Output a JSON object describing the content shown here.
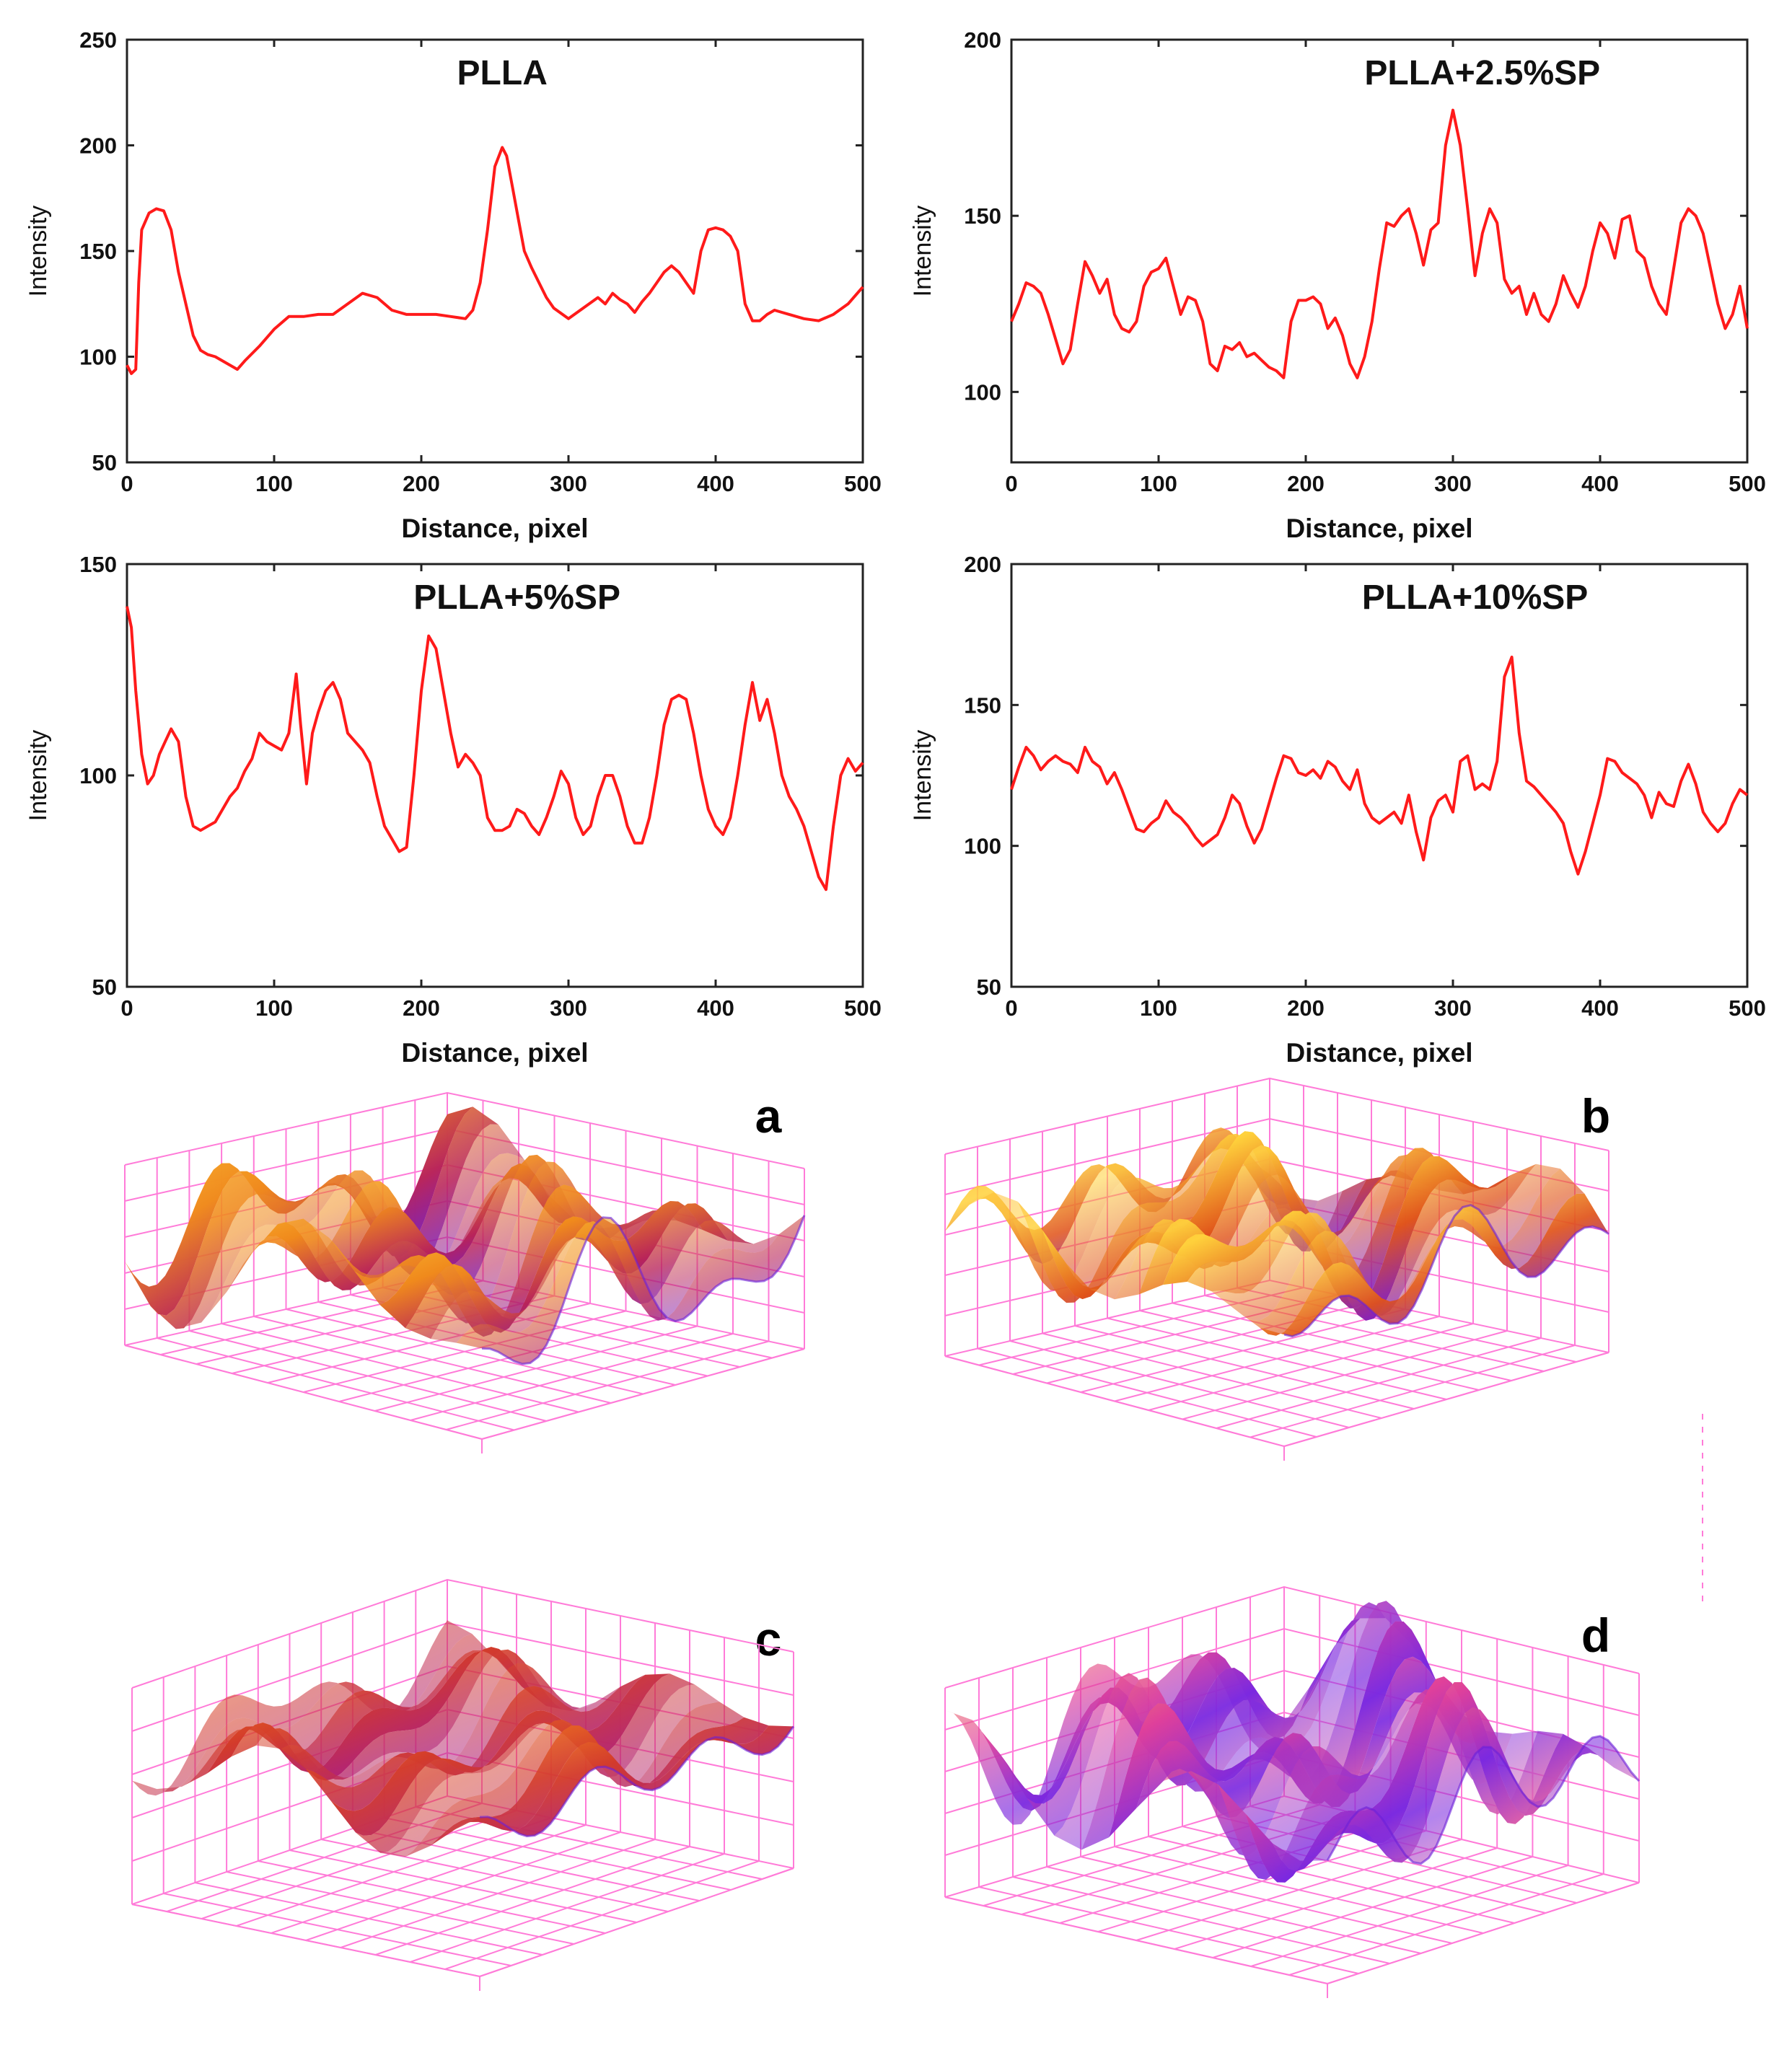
{
  "colors": {
    "line": "#ff1a1a",
    "axis": "#222222",
    "grid3d": "#ff7bd8"
  },
  "panel_letters": [
    "a",
    "b",
    "c",
    "d"
  ],
  "chart_data": [
    {
      "type": "line",
      "title": "PLLA",
      "xlabel": "Distance, pixel",
      "ylabel": "Intensity",
      "xlim": [
        0,
        500
      ],
      "ylim": [
        50,
        250
      ],
      "xticks": [
        0,
        100,
        200,
        300,
        400,
        500
      ],
      "yticks": [
        50,
        100,
        150,
        200,
        250
      ],
      "series": [
        {
          "name": "PLLA",
          "x": [
            0,
            3,
            6,
            8,
            10,
            15,
            20,
            25,
            30,
            35,
            40,
            45,
            50,
            55,
            60,
            65,
            70,
            75,
            80,
            90,
            100,
            110,
            120,
            130,
            140,
            150,
            160,
            170,
            180,
            190,
            200,
            210,
            220,
            230,
            235,
            240,
            245,
            250,
            255,
            258,
            262,
            266,
            270,
            275,
            280,
            285,
            290,
            300,
            310,
            320,
            325,
            330,
            335,
            340,
            345,
            350,
            355,
            360,
            365,
            370,
            375,
            380,
            385,
            390,
            395,
            400,
            405,
            410,
            415,
            420,
            425,
            430,
            435,
            440,
            445,
            450,
            460,
            470,
            480,
            490,
            500
          ],
          "y": [
            96,
            92,
            94,
            135,
            160,
            168,
            170,
            169,
            160,
            140,
            125,
            110,
            103,
            101,
            100,
            98,
            96,
            94,
            98,
            105,
            113,
            119,
            119,
            120,
            120,
            125,
            130,
            128,
            122,
            120,
            120,
            120,
            119,
            118,
            122,
            135,
            160,
            190,
            199,
            195,
            180,
            165,
            150,
            142,
            135,
            128,
            123,
            118,
            123,
            128,
            125,
            130,
            127,
            125,
            121,
            126,
            130,
            135,
            140,
            143,
            140,
            135,
            130,
            150,
            160,
            161,
            160,
            157,
            150,
            125,
            117,
            117,
            120,
            122,
            121,
            120,
            118,
            117,
            120,
            125,
            133
          ]
        }
      ]
    },
    {
      "type": "line",
      "title": "PLLA+2.5%SP",
      "xlabel": "Distance, pixel",
      "ylabel": "Intensity",
      "xlim": [
        0,
        500
      ],
      "ylim": [
        80,
        200
      ],
      "xticks": [
        0,
        100,
        200,
        300,
        400,
        500
      ],
      "yticks": [
        100,
        150,
        200
      ],
      "series": [
        {
          "name": "PLLA+2.5%SP",
          "x": [
            0,
            5,
            10,
            15,
            20,
            25,
            30,
            35,
            40,
            45,
            50,
            55,
            60,
            65,
            70,
            75,
            80,
            85,
            90,
            95,
            100,
            105,
            110,
            115,
            120,
            125,
            130,
            135,
            140,
            145,
            150,
            155,
            160,
            165,
            170,
            175,
            180,
            185,
            190,
            195,
            200,
            205,
            210,
            215,
            220,
            225,
            230,
            235,
            240,
            245,
            250,
            255,
            260,
            265,
            270,
            275,
            280,
            285,
            290,
            295,
            300,
            305,
            310,
            315,
            320,
            325,
            330,
            335,
            340,
            345,
            350,
            355,
            360,
            365,
            370,
            375,
            380,
            385,
            390,
            395,
            400,
            405,
            410,
            415,
            420,
            425,
            430,
            435,
            440,
            445,
            450,
            455,
            460,
            465,
            470,
            475,
            480,
            485,
            490,
            495,
            500
          ],
          "y": [
            120,
            125,
            131,
            130,
            128,
            122,
            115,
            108,
            112,
            125,
            137,
            133,
            128,
            132,
            122,
            118,
            117,
            120,
            130,
            134,
            135,
            138,
            130,
            122,
            127,
            126,
            120,
            108,
            106,
            113,
            112,
            114,
            110,
            111,
            109,
            107,
            106,
            104,
            120,
            126,
            126,
            127,
            125,
            118,
            121,
            116,
            108,
            104,
            110,
            120,
            135,
            148,
            147,
            150,
            152,
            145,
            136,
            146,
            148,
            170,
            180,
            170,
            152,
            133,
            145,
            152,
            148,
            132,
            128,
            130,
            122,
            128,
            122,
            120,
            125,
            133,
            128,
            124,
            130,
            140,
            148,
            145,
            138,
            149,
            150,
            140,
            138,
            130,
            125,
            122,
            135,
            148,
            152,
            150,
            145,
            135,
            125,
            118,
            122,
            130,
            118
          ]
        }
      ]
    },
    {
      "type": "line",
      "title": "PLLA+5%SP",
      "xlabel": "Distance, pixel",
      "ylabel": "Intensity",
      "xlim": [
        0,
        500
      ],
      "ylim": [
        50,
        150
      ],
      "xticks": [
        0,
        100,
        200,
        300,
        400,
        500
      ],
      "yticks": [
        50,
        100,
        150
      ],
      "series": [
        {
          "name": "PLLA+5%SP",
          "x": [
            0,
            3,
            6,
            10,
            14,
            18,
            22,
            26,
            30,
            35,
            40,
            45,
            50,
            55,
            60,
            65,
            70,
            75,
            80,
            85,
            90,
            95,
            100,
            105,
            110,
            115,
            118,
            122,
            126,
            130,
            135,
            140,
            145,
            150,
            155,
            160,
            165,
            170,
            175,
            180,
            185,
            190,
            195,
            200,
            205,
            210,
            215,
            220,
            225,
            230,
            235,
            240,
            245,
            250,
            255,
            260,
            265,
            270,
            275,
            280,
            285,
            290,
            295,
            300,
            305,
            310,
            315,
            320,
            325,
            330,
            335,
            340,
            345,
            350,
            355,
            360,
            365,
            370,
            375,
            380,
            385,
            390,
            395,
            400,
            405,
            410,
            415,
            420,
            425,
            430,
            435,
            440,
            445,
            450,
            455,
            460,
            465,
            470,
            475,
            480,
            485,
            490,
            495,
            500
          ],
          "y": [
            140,
            135,
            120,
            105,
            98,
            100,
            105,
            108,
            111,
            108,
            95,
            88,
            87,
            88,
            89,
            92,
            95,
            97,
            101,
            104,
            110,
            108,
            107,
            106,
            110,
            124,
            112,
            98,
            110,
            115,
            120,
            122,
            118,
            110,
            108,
            106,
            103,
            95,
            88,
            85,
            82,
            83,
            100,
            120,
            133,
            130,
            120,
            110,
            102,
            105,
            103,
            100,
            90,
            87,
            87,
            88,
            92,
            91,
            88,
            86,
            90,
            95,
            101,
            98,
            90,
            86,
            88,
            95,
            100,
            100,
            95,
            88,
            84,
            84,
            90,
            100,
            112,
            118,
            119,
            118,
            110,
            100,
            92,
            88,
            86,
            90,
            100,
            112,
            122,
            113,
            118,
            110,
            100,
            95,
            92,
            88,
            82,
            76,
            73,
            88,
            100,
            104,
            101,
            103
          ]
        }
      ]
    },
    {
      "type": "line",
      "title": "PLLA+10%SP",
      "xlabel": "Distance, pixel",
      "ylabel": "Intensity",
      "xlim": [
        0,
        500
      ],
      "ylim": [
        50,
        200
      ],
      "xticks": [
        0,
        100,
        200,
        300,
        400,
        500
      ],
      "yticks": [
        50,
        100,
        150,
        200
      ],
      "series": [
        {
          "name": "PLLA+10%SP",
          "x": [
            0,
            5,
            10,
            15,
            20,
            25,
            30,
            35,
            40,
            45,
            50,
            55,
            60,
            65,
            70,
            75,
            80,
            85,
            90,
            95,
            100,
            105,
            110,
            115,
            120,
            125,
            130,
            135,
            140,
            145,
            150,
            155,
            160,
            165,
            170,
            175,
            180,
            185,
            190,
            195,
            200,
            205,
            210,
            215,
            220,
            225,
            230,
            235,
            240,
            245,
            250,
            255,
            260,
            265,
            270,
            275,
            280,
            285,
            290,
            295,
            300,
            305,
            310,
            315,
            320,
            325,
            330,
            335,
            340,
            345,
            350,
            355,
            360,
            365,
            370,
            375,
            380,
            385,
            390,
            395,
            400,
            405,
            410,
            415,
            420,
            425,
            430,
            435,
            440,
            445,
            450,
            455,
            460,
            465,
            470,
            475,
            480,
            485,
            490,
            495,
            500
          ],
          "y": [
            120,
            128,
            135,
            132,
            127,
            130,
            132,
            130,
            129,
            126,
            135,
            130,
            128,
            122,
            126,
            120,
            113,
            106,
            105,
            108,
            110,
            116,
            112,
            110,
            107,
            103,
            100,
            102,
            104,
            110,
            118,
            115,
            107,
            101,
            106,
            115,
            124,
            132,
            131,
            126,
            125,
            127,
            124,
            130,
            128,
            123,
            120,
            127,
            115,
            110,
            108,
            110,
            112,
            108,
            118,
            105,
            95,
            110,
            116,
            118,
            112,
            130,
            132,
            120,
            122,
            120,
            130,
            160,
            167,
            140,
            123,
            121,
            118,
            115,
            112,
            108,
            98,
            90,
            98,
            108,
            118,
            131,
            130,
            126,
            124,
            122,
            118,
            110,
            119,
            115,
            114,
            123,
            129,
            122,
            112,
            108,
            105,
            108,
            115,
            120,
            118
          ]
        }
      ]
    }
  ]
}
